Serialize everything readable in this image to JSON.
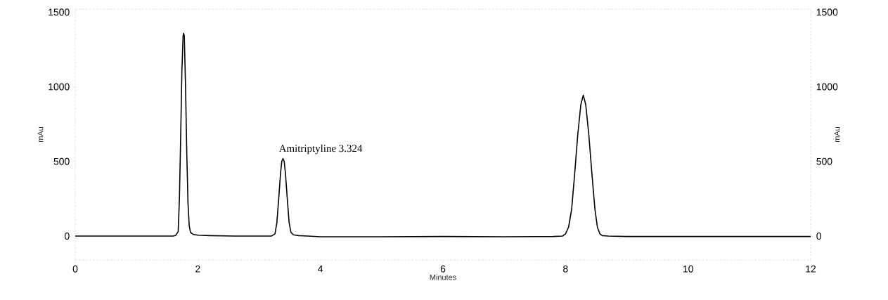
{
  "chart_data": {
    "type": "line",
    "xlabel": "Minutes",
    "ylabel": "mAu",
    "y2label": "mAu",
    "x": [
      0,
      0.5,
      1,
      1.5,
      1.6,
      1.64,
      1.68,
      1.7,
      1.72,
      1.74,
      1.76,
      1.77,
      1.78,
      1.8,
      1.82,
      1.84,
      1.86,
      1.88,
      1.92,
      2.0,
      2.2,
      2.6,
      3.0,
      3.2,
      3.26,
      3.29,
      3.32,
      3.35,
      3.37,
      3.39,
      3.41,
      3.43,
      3.46,
      3.49,
      3.52,
      3.56,
      3.65,
      3.8,
      4.0,
      5,
      6,
      7,
      7.8,
      7.95,
      8.0,
      8.05,
      8.1,
      8.15,
      8.2,
      8.25,
      8.29,
      8.33,
      8.38,
      8.43,
      8.48,
      8.52,
      8.56,
      8.6,
      8.7,
      9,
      10,
      11,
      12
    ],
    "series": [
      {
        "color": "#000000",
        "values": [
          0,
          0,
          0,
          0,
          0,
          5,
          30,
          250,
          650,
          1100,
          1340,
          1358,
          1340,
          1000,
          560,
          220,
          70,
          25,
          12,
          6,
          3,
          0,
          0,
          0,
          15,
          90,
          250,
          420,
          500,
          520,
          500,
          420,
          250,
          90,
          25,
          8,
          3,
          0,
          -5,
          -5,
          -3,
          -5,
          -3,
          0,
          15,
          60,
          180,
          420,
          680,
          880,
          944,
          880,
          680,
          420,
          180,
          60,
          15,
          3,
          0,
          -3,
          -3,
          -3,
          -3
        ]
      }
    ],
    "xlim": [
      0,
      12
    ],
    "xticks": [
      0,
      2,
      4,
      6,
      8,
      10,
      12
    ],
    "ylim": [
      -160,
      1520
    ],
    "yticks": [
      0,
      500,
      1000,
      1500
    ],
    "y2lim": [
      -160,
      1520
    ],
    "y2ticks": [
      0,
      500,
      1000,
      1500
    ],
    "annotations": [
      {
        "text": "Amitriptyline  3.324",
        "x": 3.39,
        "y": 520
      }
    ],
    "marker": "none",
    "line_style": "solid"
  }
}
